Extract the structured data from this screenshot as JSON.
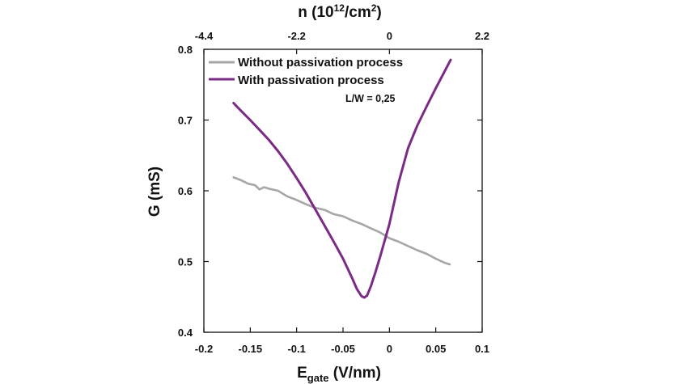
{
  "chart_data": {
    "type": "line",
    "xlabel": {
      "main": "E",
      "sub": "gate",
      "rest": " (V/nm)"
    },
    "ylabel": "G (mS)",
    "x2label": {
      "pre": "n (10",
      "sup": "12",
      "mid": "/cm",
      "sup2": "2",
      "post": ")"
    },
    "xlim": [
      -0.2,
      0.1
    ],
    "ylim": [
      0.4,
      0.8
    ],
    "xticks": [
      "-0.2",
      "-0.15",
      "-0.1",
      "-0.05",
      "0",
      "0.05",
      "0.1"
    ],
    "xtick_values": [
      -0.2,
      -0.15,
      -0.1,
      -0.05,
      0,
      0.05,
      0.1
    ],
    "yticks": [
      "0.4",
      "0.5",
      "0.6",
      "0.7",
      "0.8"
    ],
    "ytick_values": [
      0.4,
      0.5,
      0.6,
      0.7,
      0.8
    ],
    "x2ticks": [
      "-4.4",
      "-2.2",
      "0",
      "2.2"
    ],
    "x2tick_positions_in_x_units": [
      -0.2,
      -0.1,
      0,
      0.1
    ],
    "annotation": "L/W = 0,25",
    "legend_position": "top-left",
    "grid": false,
    "series": [
      {
        "name": "Without passivation process",
        "color": "#a6a6a6",
        "x": [
          -0.168,
          -0.16,
          -0.152,
          -0.145,
          -0.14,
          -0.135,
          -0.13,
          -0.12,
          -0.11,
          -0.1,
          -0.09,
          -0.08,
          -0.07,
          -0.06,
          -0.05,
          -0.04,
          -0.03,
          -0.02,
          -0.01,
          0.0,
          0.01,
          0.02,
          0.03,
          0.04,
          0.05,
          0.06,
          0.065
        ],
        "y": [
          0.619,
          0.615,
          0.61,
          0.608,
          0.602,
          0.605,
          0.603,
          0.6,
          0.592,
          0.587,
          0.581,
          0.576,
          0.573,
          0.567,
          0.564,
          0.558,
          0.553,
          0.547,
          0.541,
          0.533,
          0.528,
          0.522,
          0.516,
          0.511,
          0.504,
          0.498,
          0.496
        ]
      },
      {
        "name": "With passivation process",
        "color": "#7b2a86",
        "x": [
          -0.168,
          -0.16,
          -0.15,
          -0.14,
          -0.13,
          -0.12,
          -0.11,
          -0.1,
          -0.09,
          -0.08,
          -0.07,
          -0.06,
          -0.05,
          -0.04,
          -0.035,
          -0.03,
          -0.027,
          -0.024,
          -0.02,
          -0.015,
          -0.01,
          -0.005,
          0.0,
          0.01,
          0.02,
          0.03,
          0.04,
          0.05,
          0.06,
          0.066
        ],
        "y": [
          0.724,
          0.713,
          0.7,
          0.686,
          0.672,
          0.656,
          0.638,
          0.618,
          0.597,
          0.574,
          0.551,
          0.528,
          0.504,
          0.476,
          0.461,
          0.451,
          0.449,
          0.452,
          0.465,
          0.485,
          0.507,
          0.53,
          0.553,
          0.612,
          0.66,
          0.692,
          0.719,
          0.745,
          0.77,
          0.785
        ]
      }
    ]
  }
}
